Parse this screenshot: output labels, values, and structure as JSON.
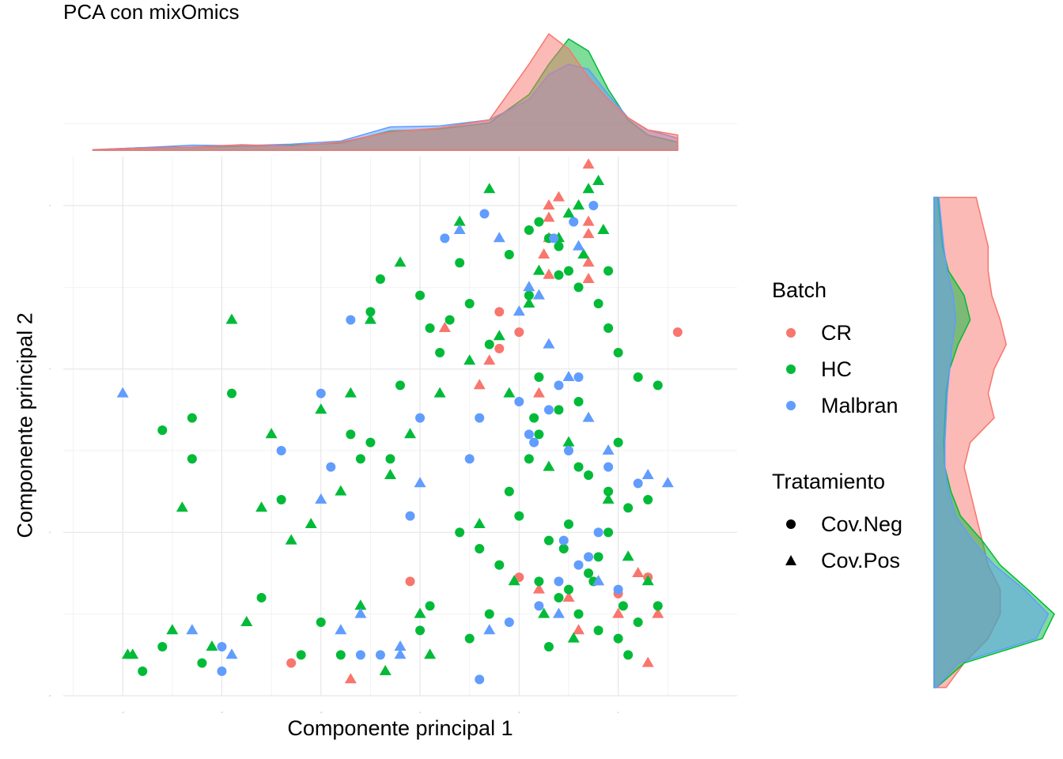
{
  "title": "PCA con mixOmics",
  "chart_data": {
    "type": "scatter",
    "title": "PCA con mixOmics",
    "xlabel": "Componente principal 1",
    "ylabel": "Componente principal 2",
    "xlim": [
      -4.6,
      2.2
    ],
    "ylim": [
      -4.0,
      2.6
    ],
    "x_ticks": [
      -4,
      -3,
      -2,
      -1,
      0,
      1
    ],
    "y_ticks": [
      -4,
      -2,
      0,
      2
    ],
    "tick_labels_legible": false,
    "grid": true,
    "marginal_density": {
      "top": true,
      "right": true
    },
    "legend_position": "right",
    "legend": {
      "color_title": "Batch",
      "color_entries": [
        {
          "label": "CR",
          "color": "#F8766D"
        },
        {
          "label": "HC",
          "color": "#00BA38"
        },
        {
          "label": "Malbran",
          "color": "#619CFF"
        }
      ],
      "shape_title": "Tratamiento",
      "shape_entries": [
        {
          "label": "Cov.Neg",
          "shape": "circle"
        },
        {
          "label": "Cov.Pos",
          "shape": "triangle"
        }
      ]
    },
    "density_x": {
      "grid": [
        -4.3,
        -3.8,
        -3.3,
        -2.8,
        -2.3,
        -1.8,
        -1.3,
        -0.8,
        -0.3,
        0.1,
        0.3,
        0.5,
        0.7,
        0.9,
        1.1,
        1.3,
        1.6
      ],
      "CR": [
        0.004,
        0.02,
        0.03,
        0.055,
        0.04,
        0.08,
        0.18,
        0.22,
        0.3,
        0.85,
        1.15,
        1.0,
        0.72,
        0.5,
        0.32,
        0.2,
        0.15
      ],
      "HC": [
        0.004,
        0.025,
        0.03,
        0.04,
        0.05,
        0.07,
        0.19,
        0.21,
        0.27,
        0.55,
        0.85,
        1.1,
        0.98,
        0.6,
        0.3,
        0.15,
        0.08
      ],
      "Malbran": [
        0.006,
        0.025,
        0.05,
        0.045,
        0.06,
        0.09,
        0.23,
        0.24,
        0.3,
        0.5,
        0.75,
        0.85,
        0.8,
        0.55,
        0.32,
        0.2,
        0.12
      ]
    },
    "density_y": {
      "grid": [
        -3.9,
        -3.6,
        -3.3,
        -3.0,
        -2.7,
        -2.4,
        -2.1,
        -1.8,
        -1.5,
        -1.2,
        -0.9,
        -0.6,
        -0.3,
        0.0,
        0.3,
        0.6,
        0.9,
        1.2,
        1.5,
        1.8,
        2.1
      ],
      "CR": [
        0.1,
        0.25,
        0.45,
        0.55,
        0.55,
        0.45,
        0.4,
        0.35,
        0.3,
        0.25,
        0.3,
        0.5,
        0.45,
        0.5,
        0.6,
        0.55,
        0.48,
        0.45,
        0.45,
        0.4,
        0.35
      ],
      "HC": [
        0.02,
        0.25,
        0.9,
        1.0,
        0.78,
        0.55,
        0.4,
        0.22,
        0.14,
        0.09,
        0.08,
        0.09,
        0.1,
        0.13,
        0.2,
        0.3,
        0.25,
        0.12,
        0.07,
        0.05,
        0.03
      ],
      "Malbran": [
        0.02,
        0.2,
        0.85,
        0.95,
        0.75,
        0.5,
        0.32,
        0.18,
        0.12,
        0.09,
        0.09,
        0.1,
        0.11,
        0.13,
        0.15,
        0.18,
        0.16,
        0.11,
        0.08,
        0.06,
        0.04
      ]
    },
    "series": [
      {
        "name": "CR",
        "shape": "circle",
        "x": [
          -2.3,
          -0.2,
          -0.2,
          0.0,
          0.0,
          1.6,
          -1.1,
          1.0,
          1.3
        ],
        "y": [
          -3.6,
          0.7,
          0.25,
          0.45,
          -2.55,
          0.45,
          -2.6,
          -2.75,
          -2.55
        ]
      },
      {
        "name": "CR",
        "shape": "triangle",
        "x": [
          0.7,
          0.4,
          0.3,
          0.3,
          0.7,
          0.3,
          0.7,
          0.25,
          0.7,
          0.3,
          0.7,
          -0.75,
          -0.3,
          -0.4,
          0.2,
          -1.7,
          0.2,
          0.8,
          0.5,
          1.3,
          0.6,
          1.4,
          1.2,
          1.0
        ],
        "y": [
          2.5,
          2.1,
          2.0,
          1.85,
          1.8,
          1.6,
          1.65,
          1.4,
          1.3,
          1.15,
          1.1,
          0.5,
          0.1,
          -0.2,
          -0.3,
          -3.8,
          -2.7,
          -2.6,
          -2.8,
          -3.6,
          -3.2,
          -3.0,
          -2.5,
          -3.0
        ]
      },
      {
        "name": "HC",
        "shape": "circle",
        "x": [
          -3.6,
          -3.3,
          -3.3,
          -2.4,
          -2.9,
          -1.6,
          -1.5,
          -1.3,
          -1.7,
          -1.2,
          -1.4,
          -1.5,
          -1.0,
          -0.6,
          -0.5,
          -0.3,
          -0.7,
          -0.8,
          -0.9,
          -0.1,
          0.1,
          0.2,
          0.3,
          0.4,
          0.5,
          0.6,
          0.8,
          0.9,
          1.0,
          1.2,
          1.4,
          0.6,
          0.4,
          0.2,
          0.1,
          0.7,
          0.9,
          1.1,
          1.3,
          0.5,
          0.3,
          0.8,
          -0.2,
          -0.4,
          -0.6,
          -0.1,
          0.0,
          0.2,
          0.4,
          0.6,
          0.8,
          1.0,
          1.2,
          1.4,
          0.5,
          0.7,
          0.9,
          0.3,
          1.1,
          0.6,
          0.2,
          -0.9,
          -1.0,
          -2.0,
          -2.6,
          -2.2,
          -1.8,
          -3.6,
          -3.2,
          -3.8,
          -0.3,
          0.1,
          0.4,
          0.9,
          1.0,
          -0.5,
          0.15,
          0.45,
          0.75,
          1.05
        ],
        "y": [
          -0.75,
          -1.1,
          -0.6,
          -1.6,
          -0.3,
          -1.1,
          -0.9,
          -1.1,
          -0.8,
          -0.2,
          1.1,
          0.7,
          0.9,
          1.3,
          0.8,
          0.3,
          0.6,
          0.2,
          0.5,
          1.4,
          1.7,
          1.8,
          1.6,
          1.5,
          1.2,
          1.0,
          0.8,
          0.5,
          0.2,
          -0.1,
          -0.2,
          -0.4,
          -0.5,
          -0.8,
          -1.1,
          -1.3,
          -1.5,
          -1.7,
          -1.6,
          -1.9,
          -2.1,
          -2.3,
          -2.4,
          -2.2,
          -2.0,
          -1.5,
          -1.8,
          -2.6,
          -2.8,
          -3.0,
          -3.2,
          -3.3,
          -3.1,
          -2.9,
          -2.7,
          -2.5,
          -2.0,
          -3.4,
          -3.5,
          -1.2,
          -0.1,
          -2.9,
          -3.2,
          -3.1,
          -2.8,
          -3.5,
          -3.5,
          -3.4,
          -3.6,
          -3.7,
          -3.0,
          0.9,
          1.15,
          1.2,
          -0.9,
          -3.3,
          -0.6,
          -2.2,
          -2.6,
          -2.9
        ]
      },
      {
        "name": "HC",
        "shape": "triangle",
        "x": [
          -3.9,
          -2.9,
          -2.5,
          -2.0,
          -1.7,
          -1.8,
          -1.3,
          -1.1,
          -0.8,
          -0.5,
          -0.2,
          0.1,
          0.2,
          0.4,
          0.5,
          0.6,
          0.7,
          0.8,
          -0.3,
          -0.6,
          -1.2,
          -1.5,
          -2.3,
          -2.1,
          -3.1,
          -3.5,
          -3.4,
          -2.6,
          -1.6,
          -1.0,
          -0.9,
          -0.4,
          -0.1,
          0.3,
          0.5,
          0.9,
          1.1,
          1.3,
          0.55,
          0.25,
          -0.05,
          -1.35,
          -2.75,
          -3.95,
          0.65,
          0.85
        ],
        "y": [
          -3.5,
          0.6,
          -0.8,
          -0.5,
          -0.3,
          -1.5,
          -1.3,
          -0.8,
          -0.3,
          0.1,
          0.4,
          0.8,
          1.2,
          1.6,
          1.9,
          2.0,
          2.2,
          2.3,
          2.2,
          1.8,
          1.3,
          0.6,
          -2.1,
          -1.9,
          -3.4,
          -3.2,
          -1.7,
          -1.7,
          -2.9,
          -3.0,
          -3.5,
          -1.9,
          -0.3,
          -1.2,
          -0.9,
          -1.6,
          -2.3,
          -2.6,
          -3.3,
          -3.0,
          -2.6,
          -3.7,
          -3.1,
          -3.5,
          1.4,
          1.7
        ]
      },
      {
        "name": "Malbran",
        "shape": "circle",
        "x": [
          -2.0,
          -1.7,
          -1.9,
          -1.6,
          -0.4,
          -1.0,
          -0.4,
          0.0,
          0.4,
          0.6,
          0.3,
          0.1,
          0.5,
          0.9,
          1.2,
          0.7,
          0.4,
          0.2,
          -0.1,
          -3.0,
          -3.0,
          -2.4,
          -1.4,
          -1.1,
          -0.5,
          0.8,
          0.6,
          1.0,
          0.35,
          0.55,
          0.75,
          -0.35,
          -0.75,
          0.15,
          0.45
        ],
        "y": [
          -0.3,
          0.6,
          -1.2,
          -3.5,
          -3.8,
          -0.6,
          -0.6,
          -0.4,
          -0.2,
          -0.1,
          -0.5,
          -0.8,
          -1.0,
          -1.2,
          -1.4,
          -2.3,
          -2.6,
          -2.9,
          -3.1,
          -3.4,
          -3.7,
          -1.0,
          -3.5,
          -1.8,
          -1.1,
          -2.0,
          -2.4,
          -2.7,
          1.6,
          1.8,
          2.0,
          1.9,
          1.6,
          -0.9,
          -2.1
        ]
      },
      {
        "name": "Malbran",
        "shape": "triangle",
        "x": [
          -4.0,
          -3.3,
          -2.9,
          -1.2,
          -1.0,
          -0.6,
          -0.2,
          0.1,
          0.3,
          0.5,
          0.7,
          0.9,
          1.3,
          1.5,
          0.8,
          0.4,
          -0.3,
          -1.6,
          -2.0,
          -1.8,
          -1.2,
          0.0,
          0.2,
          0.6
        ],
        "y": [
          -0.3,
          -3.2,
          -3.5,
          -3.4,
          -1.4,
          1.7,
          1.6,
          1.0,
          0.3,
          -0.1,
          -0.6,
          -1.0,
          -1.3,
          -1.4,
          -2.6,
          -3.0,
          -3.2,
          -3.0,
          -1.6,
          -3.2,
          -3.5,
          0.7,
          0.9,
          1.5
        ]
      }
    ]
  }
}
